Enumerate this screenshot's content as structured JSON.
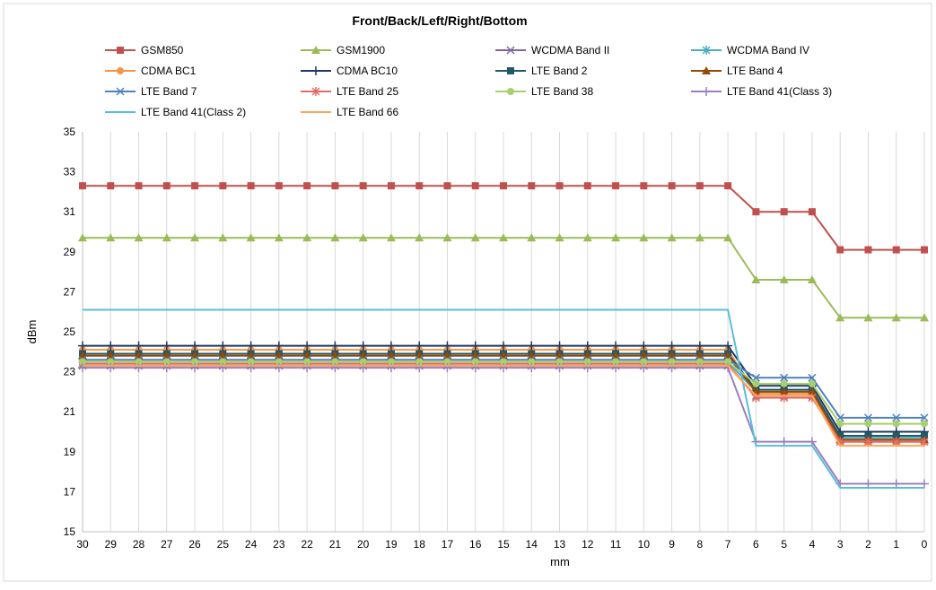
{
  "chart_data": {
    "type": "line",
    "title": "Front/Back/Left/Right/Bottom",
    "xlabel": "mm",
    "ylabel": "dBm",
    "ylim": [
      15,
      35
    ],
    "yticks": [
      15,
      17,
      19,
      21,
      23,
      25,
      27,
      29,
      31,
      33,
      35
    ],
    "categories": [
      "30",
      "29",
      "28",
      "27",
      "26",
      "25",
      "24",
      "23",
      "22",
      "21",
      "20",
      "19",
      "18",
      "17",
      "16",
      "15",
      "14",
      "13",
      "12",
      "11",
      "10",
      "9",
      "8",
      "7",
      "6",
      "5",
      "4",
      "3",
      "2",
      "1",
      "0"
    ],
    "grid": "vertical",
    "legend_position": "top",
    "series": [
      {
        "name": "GSM850",
        "color": "#c0504d",
        "marker": "square",
        "levels": [
          32.3,
          31.0,
          29.1
        ]
      },
      {
        "name": "GSM1900",
        "color": "#9bbb59",
        "marker": "triangle",
        "levels": [
          29.7,
          27.6,
          25.7
        ]
      },
      {
        "name": "WCDMA Band II",
        "color": "#8064a2",
        "marker": "x",
        "levels": [
          23.3,
          21.8,
          19.5
        ]
      },
      {
        "name": "WCDMA Band IV",
        "color": "#4bacc6",
        "marker": "star",
        "levels": [
          23.5,
          22.0,
          19.7
        ]
      },
      {
        "name": "CDMA BC1",
        "color": "#f79646",
        "marker": "circle",
        "levels": [
          24.1,
          21.9,
          19.5
        ]
      },
      {
        "name": "CDMA BC10",
        "color": "#1f3864",
        "marker": "plus",
        "levels": [
          24.3,
          22.3,
          20.0
        ]
      },
      {
        "name": "LTE Band 2",
        "color": "#215968",
        "marker": "square",
        "levels": [
          23.9,
          22.1,
          19.8
        ]
      },
      {
        "name": "LTE Band 4",
        "color": "#984807",
        "marker": "triangle",
        "levels": [
          23.8,
          22.0,
          19.6
        ]
      },
      {
        "name": "LTE Band 7",
        "color": "#4f81bd",
        "marker": "x",
        "levels": [
          23.6,
          22.7,
          20.7
        ]
      },
      {
        "name": "LTE Band 25",
        "color": "#e46c65",
        "marker": "star",
        "levels": [
          23.4,
          21.7,
          19.5
        ]
      },
      {
        "name": "LTE Band 38",
        "color": "#a6d06e",
        "marker": "circle",
        "levels": [
          23.5,
          22.4,
          20.4
        ]
      },
      {
        "name": "LTE Band 41(Class 3)",
        "color": "#9b7ec0",
        "marker": "plus",
        "levels": [
          23.2,
          19.5,
          17.4
        ]
      },
      {
        "name": "LTE Band 41(Class 2)",
        "color": "#5bbcd9",
        "marker": "none",
        "levels": [
          26.1,
          19.3,
          17.2
        ]
      },
      {
        "name": "LTE Band 66",
        "color": "#f9a85b",
        "marker": "none",
        "levels": [
          23.3,
          21.8,
          19.3
        ]
      }
    ]
  }
}
